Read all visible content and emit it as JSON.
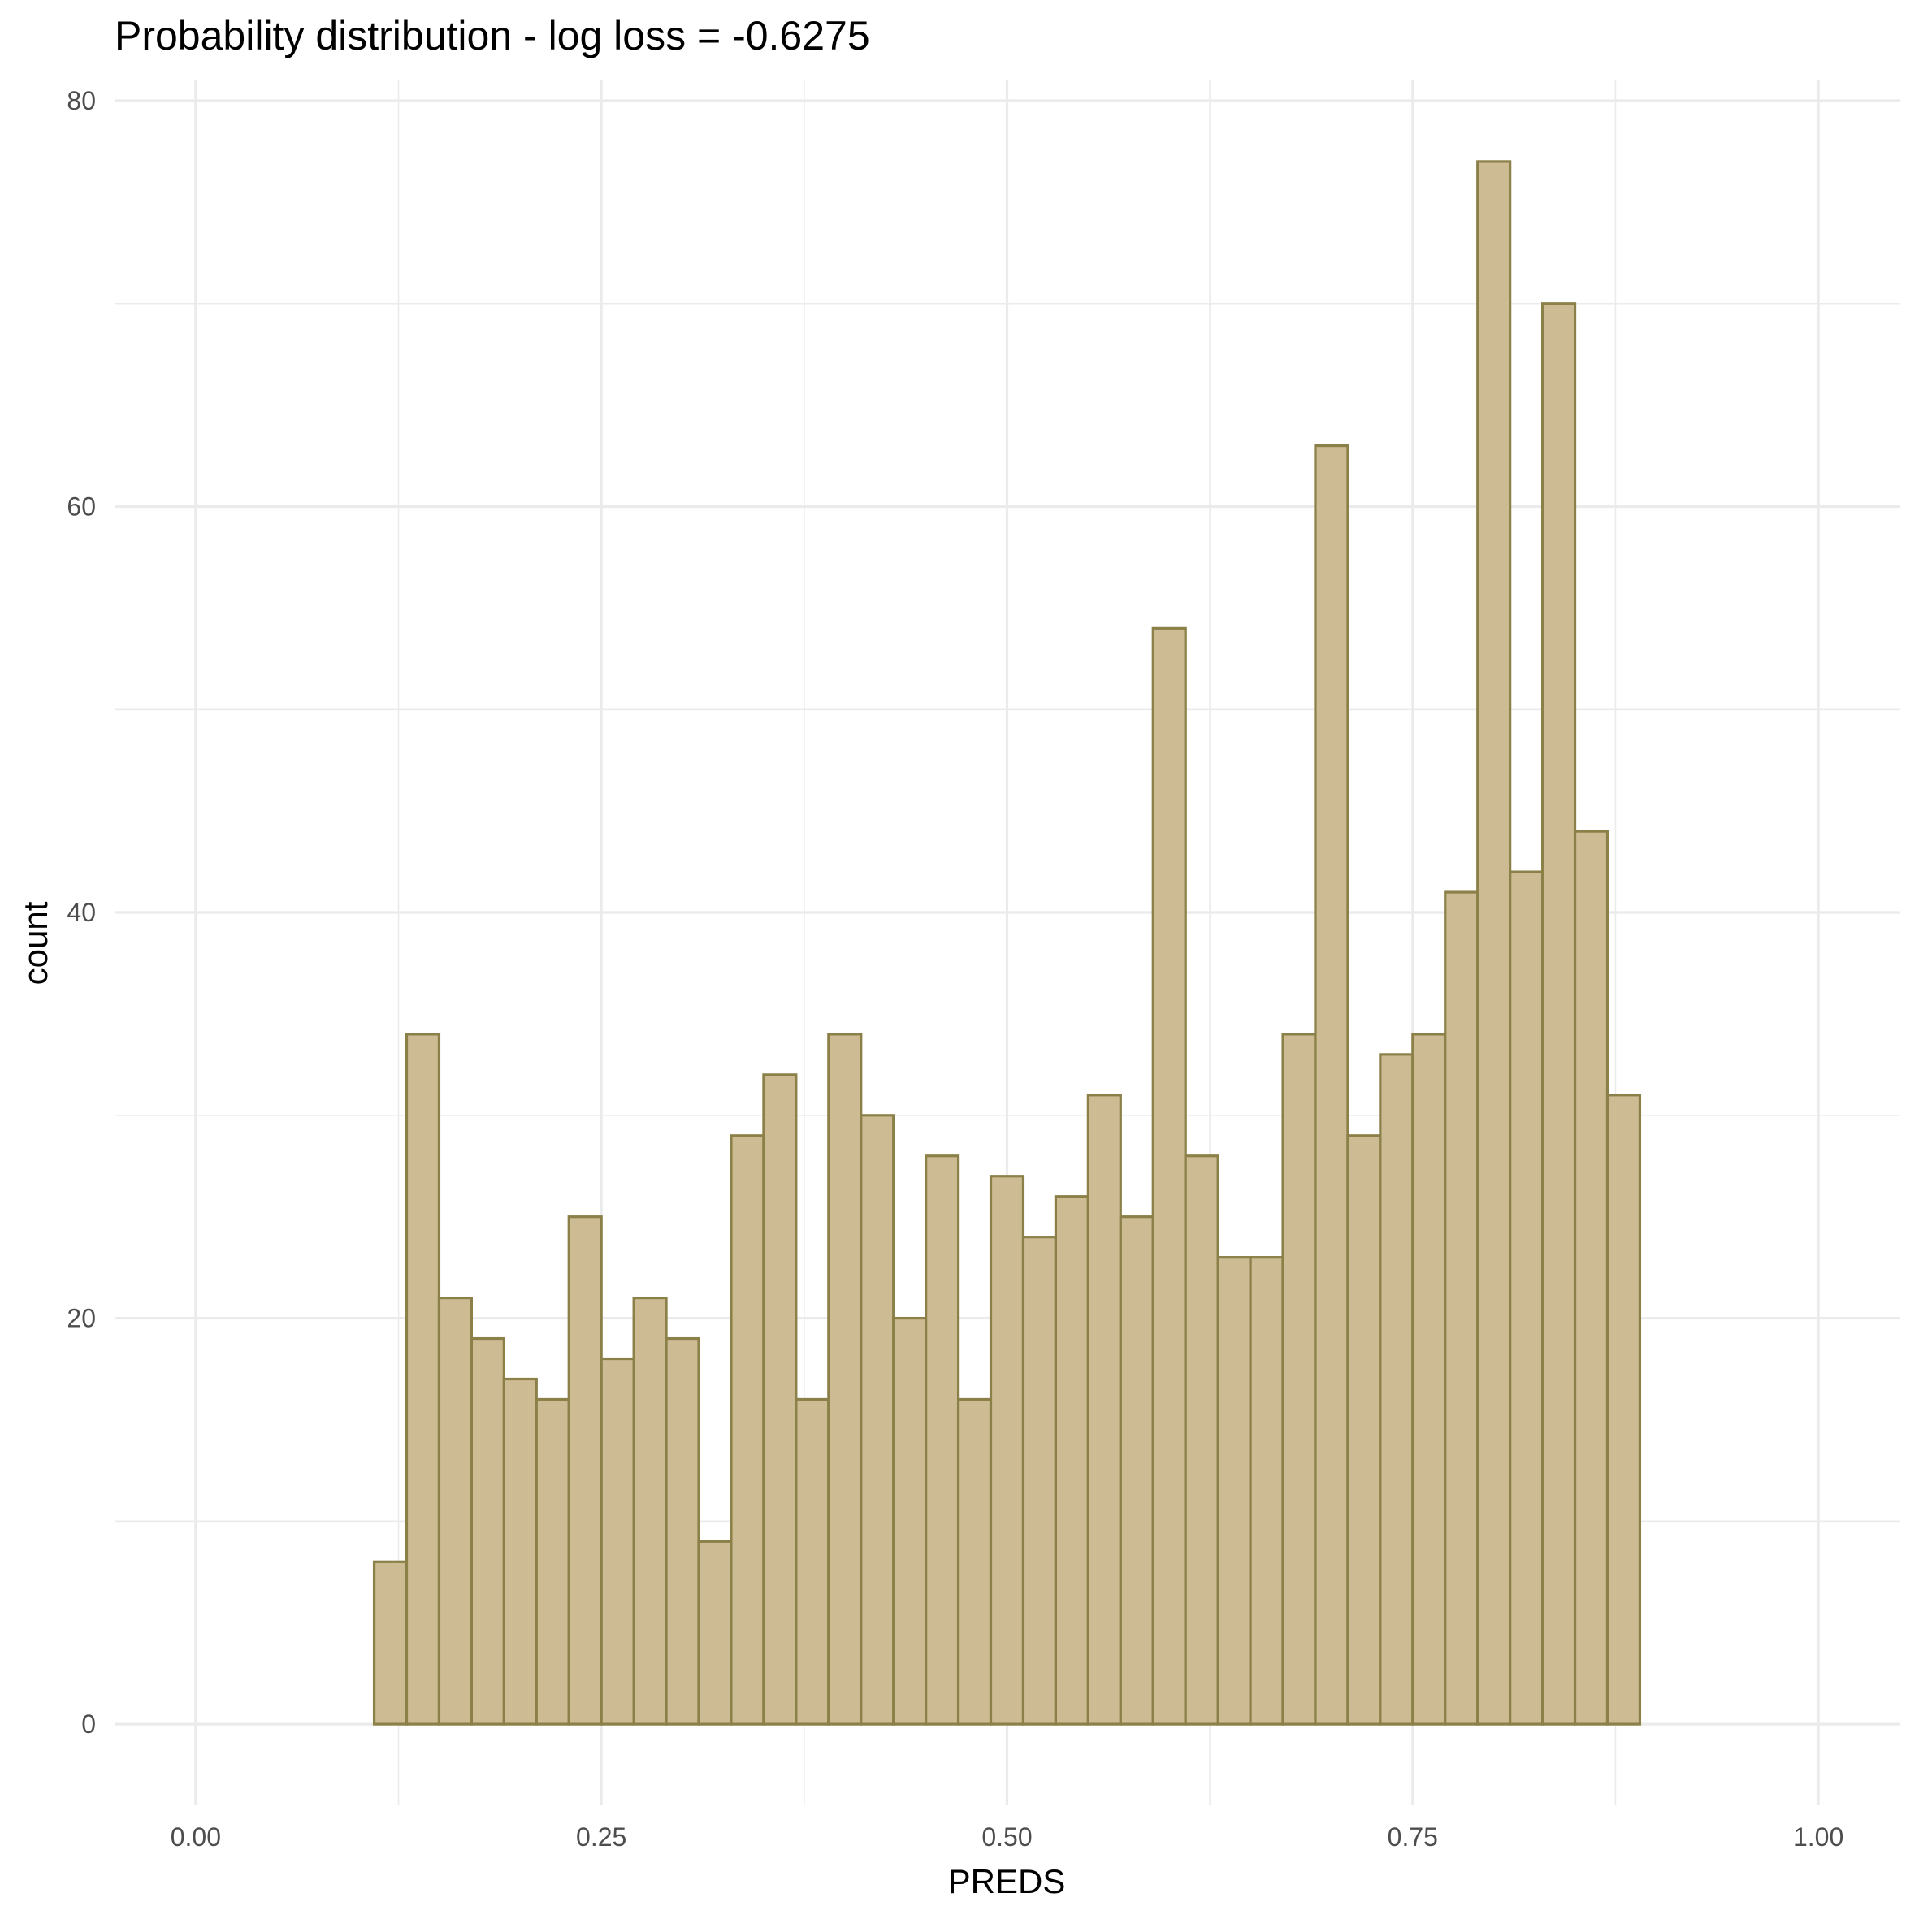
{
  "chart_data": {
    "type": "bar",
    "title": "Probability distribution - log loss = -0.6275",
    "xlabel": "PREDS",
    "ylabel": "count",
    "xlim": [
      -0.05,
      1.05
    ],
    "ylim": [
      -4,
      81
    ],
    "x_ticks": [
      0.0,
      0.25,
      0.5,
      0.75,
      1.0
    ],
    "x_tick_labels": [
      "0.00",
      "0.25",
      "0.50",
      "0.75",
      "1.00"
    ],
    "x_minor_ticks": [
      0.125,
      0.375,
      0.625,
      0.875
    ],
    "y_ticks": [
      0,
      20,
      40,
      60,
      80
    ],
    "y_tick_labels": [
      "0",
      "20",
      "40",
      "60",
      "80"
    ],
    "y_minor_ticks": [
      10,
      30,
      50,
      70
    ],
    "grid": true,
    "fill_color": "#cdbb94",
    "outline_color": "#8b8048",
    "bin_width": 0.02,
    "bin_centers": [
      0.02,
      0.04,
      0.06,
      0.08,
      0.1,
      0.12,
      0.14,
      0.16,
      0.18,
      0.2,
      0.22,
      0.24,
      0.26,
      0.28,
      0.3,
      0.32,
      0.34,
      0.36,
      0.38,
      0.4,
      0.42,
      0.44,
      0.46,
      0.48,
      0.5,
      0.52,
      0.54,
      0.56,
      0.58,
      0.6,
      0.62,
      0.64,
      0.66,
      0.68,
      0.7,
      0.72,
      0.74,
      0.76,
      0.78,
      0.8,
      0.82,
      0.84,
      0.86,
      0.88,
      0.9,
      0.92,
      0.94,
      0.96,
      0.98
    ],
    "values": [
      0,
      0,
      0,
      0,
      0,
      8,
      34,
      21,
      19,
      17,
      16,
      25,
      18,
      21,
      19,
      9,
      29,
      32,
      16,
      34,
      30,
      20,
      28,
      16,
      27,
      24,
      26,
      31,
      25,
      54,
      28,
      23,
      23,
      34,
      63,
      29,
      33,
      34,
      41,
      77,
      42,
      70,
      44,
      31,
      0,
      0,
      0,
      0,
      0
    ]
  }
}
